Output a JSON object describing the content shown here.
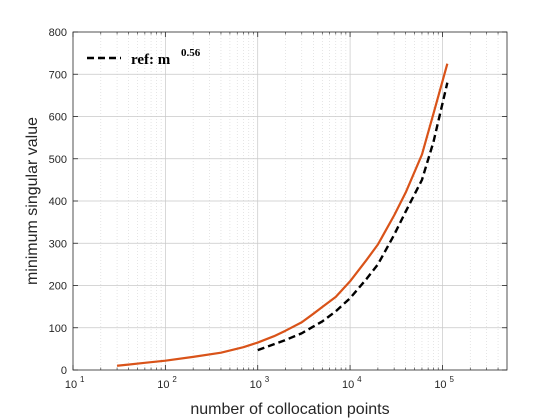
{
  "chart_data": {
    "type": "line",
    "xlabel": "number of collocation points",
    "ylabel": "minimum singular value",
    "xscale": "log",
    "xlim": [
      10,
      500000
    ],
    "ylim": [
      0,
      800
    ],
    "grid": true,
    "legend_placement": "top-left",
    "x_tick_labels": [
      {
        "value": 10,
        "base": "10",
        "exp": "1"
      },
      {
        "value": 100,
        "base": "10",
        "exp": "2"
      },
      {
        "value": 1000,
        "base": "10",
        "exp": "3"
      },
      {
        "value": 10000,
        "base": "10",
        "exp": "4"
      },
      {
        "value": 100000,
        "base": "10",
        "exp": "5"
      }
    ],
    "y_ticks": [
      0,
      100,
      200,
      300,
      400,
      500,
      600,
      700,
      800
    ],
    "series": [
      {
        "name": "",
        "color": "#D95319",
        "style": "solid",
        "points": [
          [
            30,
            10
          ],
          [
            60,
            17
          ],
          [
            100,
            22
          ],
          [
            200,
            31
          ],
          [
            400,
            41
          ],
          [
            700,
            54
          ],
          [
            1000,
            65
          ],
          [
            1500,
            80
          ],
          [
            2000,
            93
          ],
          [
            3000,
            113
          ],
          [
            4000,
            133
          ],
          [
            5000,
            149
          ],
          [
            7000,
            173
          ],
          [
            10000,
            210
          ],
          [
            15000,
            260
          ],
          [
            20000,
            297
          ],
          [
            30000,
            366
          ],
          [
            40000,
            420
          ],
          [
            60000,
            510
          ],
          [
            80000,
            607
          ],
          [
            113000,
            725
          ]
        ]
      },
      {
        "name": "ref: m^0.56",
        "color": "#000000",
        "style": "dashed",
        "points": [
          [
            1000,
            47
          ],
          [
            2000,
            71
          ],
          [
            3000,
            87
          ],
          [
            5000,
            115
          ],
          [
            7000,
            139
          ],
          [
            10000,
            170
          ],
          [
            15000,
            215
          ],
          [
            20000,
            250
          ],
          [
            30000,
            320
          ],
          [
            40000,
            375
          ],
          [
            60000,
            450
          ],
          [
            80000,
            540
          ],
          [
            113000,
            680
          ]
        ]
      }
    ],
    "legend": {
      "label_base": "ref: m",
      "label_sup": "0.56"
    }
  }
}
